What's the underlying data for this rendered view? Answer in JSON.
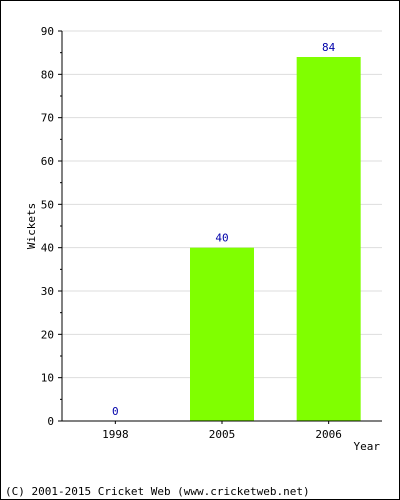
{
  "chart_data": {
    "type": "bar",
    "categories": [
      "1998",
      "2005",
      "2006"
    ],
    "values": [
      0,
      40,
      84
    ],
    "data_labels": [
      "0",
      "40",
      "84"
    ],
    "xlabel": "Year",
    "ylabel": "Wickets",
    "ylim": [
      0,
      90
    ],
    "y_ticks": [
      "0",
      "10",
      "20",
      "30",
      "40",
      "50",
      "60",
      "70",
      "80",
      "90"
    ],
    "grid": true,
    "legend": "none",
    "colors": {
      "bar": "#80ff00",
      "grid": "#dddddd",
      "axis": "#000000",
      "value_label": "#0000aa"
    }
  },
  "footer": {
    "copyright": "(C) 2001-2015 Cricket Web (www.cricketweb.net)"
  }
}
